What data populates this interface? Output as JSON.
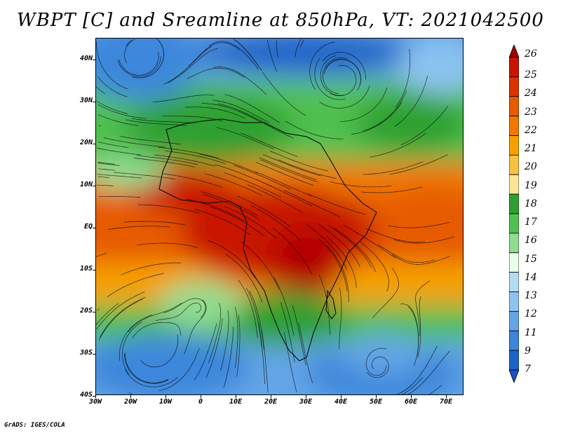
{
  "title": "WBPT [C] and Sreamline at 850hPa, VT: 2021042500",
  "map": {
    "lat_labels": [
      "40N",
      "30N",
      "20N",
      "10N",
      "EQ",
      "10S",
      "20S",
      "30S",
      "40S"
    ],
    "lon_labels": [
      "30W",
      "20W",
      "10W",
      "0",
      "10E",
      "20E",
      "30E",
      "40E",
      "50E",
      "60E",
      "70E"
    ],
    "lat_range": [
      -40,
      45
    ],
    "lon_range": [
      -30,
      75
    ]
  },
  "colorbar": {
    "levels": [
      "26",
      "25",
      "24",
      "23",
      "22",
      "21",
      "20",
      "19",
      "18",
      "17",
      "16",
      "15",
      "14",
      "13",
      "12",
      "11",
      "9",
      "7"
    ],
    "colors": [
      "#b40000",
      "#c81400",
      "#dc3200",
      "#e65a00",
      "#f07800",
      "#f5a000",
      "#f8c040",
      "#fae696",
      "#2ea032",
      "#50c050",
      "#90dc90",
      "#e6ffe6",
      "#b4dcf5",
      "#8cc3f0",
      "#64a5e6",
      "#3c87dc",
      "#1e64c8",
      "#1448b4"
    ],
    "top_arrow_color": "#a00000",
    "bottom_arrow_color": "#1e50c8"
  },
  "credit": "GrADS: IGES/COLA"
}
